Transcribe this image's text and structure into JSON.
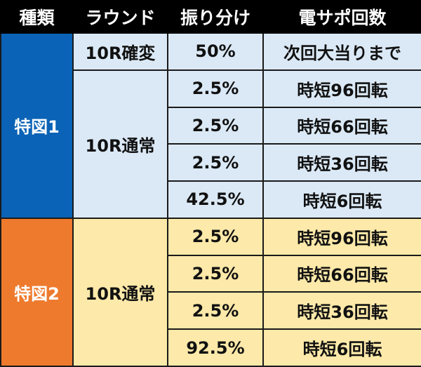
{
  "header": {
    "col_kind": "種類",
    "col_round": "ラウンド",
    "col_ratio": "振り分け",
    "col_support": "電サポ回数"
  },
  "groups": [
    {
      "kind": "特図1",
      "rows": [
        {
          "round": "10R確変",
          "ratio": "50%",
          "support": "次回大当りまで"
        },
        {
          "round": "10R通常",
          "ratio": "2.5%",
          "support": "時短96回転"
        },
        {
          "ratio": "2.5%",
          "support": "時短66回転"
        },
        {
          "ratio": "2.5%",
          "support": "時短36回転"
        },
        {
          "ratio": "42.5%",
          "support": "時短6回転"
        }
      ]
    },
    {
      "kind": "特図2",
      "rows": [
        {
          "round": "10R通常",
          "ratio": "2.5%",
          "support": "時短96回転"
        },
        {
          "ratio": "2.5%",
          "support": "時短66回転"
        },
        {
          "ratio": "2.5%",
          "support": "時短36回転"
        },
        {
          "ratio": "92.5%",
          "support": "時短6回転"
        }
      ]
    }
  ],
  "colors": {
    "header_bg": "#000000",
    "kind1_bg": "#0a63b6",
    "kind2_bg": "#ee7a2d",
    "group1_cell_bg": "#dbe9f6",
    "group2_cell_bg": "#fde9a9"
  }
}
